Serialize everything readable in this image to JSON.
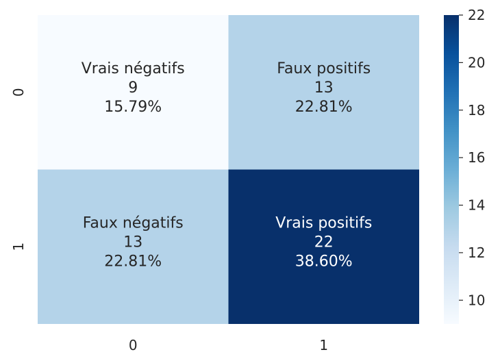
{
  "chart_data": {
    "type": "heatmap",
    "title": "",
    "xlabel": "",
    "ylabel": "",
    "x_tick_labels": [
      "0",
      "1"
    ],
    "y_tick_labels": [
      "0",
      "1"
    ],
    "cells": [
      {
        "row": 0,
        "col": 0,
        "label": "Vrais négatifs",
        "value": 9,
        "value_text": "9",
        "percent": "15.79%"
      },
      {
        "row": 0,
        "col": 1,
        "label": "Faux positifs",
        "value": 13,
        "value_text": "13",
        "percent": "22.81%"
      },
      {
        "row": 1,
        "col": 0,
        "label": "Faux négatifs",
        "value": 13,
        "value_text": "13",
        "percent": "22.81%"
      },
      {
        "row": 1,
        "col": 1,
        "label": "Vrais positifs",
        "value": 22,
        "value_text": "22",
        "percent": "38.60%"
      }
    ],
    "colorbar": {
      "min": 9,
      "max": 22,
      "ticks": [
        "10",
        "12",
        "14",
        "16",
        "18",
        "20",
        "22"
      ],
      "colormap": "Blues"
    }
  }
}
